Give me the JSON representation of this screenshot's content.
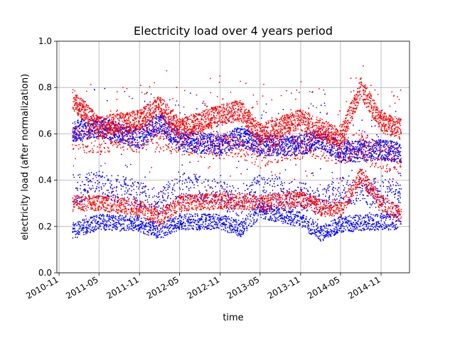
{
  "chart_data": {
    "type": "scatter",
    "title": "Electricity load over 4 years period",
    "xlabel": "time",
    "ylabel": "electricity load (after normalization)",
    "xlim": [
      "2010-10-22",
      "2015-03-10"
    ],
    "ylim": [
      0.0,
      1.0
    ],
    "grid": true,
    "x_ticks": [
      "2010-11",
      "2011-05",
      "2011-11",
      "2012-05",
      "2012-11",
      "2013-05",
      "2013-11",
      "2014-05",
      "2014-11"
    ],
    "y_ticks": [
      "0.0",
      "0.2",
      "0.4",
      "0.6",
      "0.8",
      "1.0"
    ],
    "series": [
      {
        "color": "#0000ff",
        "x_range": [
          "2011-01-01",
          "2015-01-31"
        ],
        "points_per_day": 4,
        "daily_profile": [
          {
            "date": "2011-01-01",
            "low": 0.18,
            "mid": 0.36,
            "high": 0.61
          },
          {
            "date": "2011-05-01",
            "low": 0.22,
            "mid": 0.38,
            "high": 0.63
          },
          {
            "date": "2011-11-01",
            "low": 0.21,
            "mid": 0.34,
            "high": 0.58
          },
          {
            "date": "2012-02-01",
            "low": 0.18,
            "mid": 0.3,
            "high": 0.65
          },
          {
            "date": "2012-05-01",
            "low": 0.22,
            "mid": 0.38,
            "high": 0.57
          },
          {
            "date": "2012-11-01",
            "low": 0.22,
            "mid": 0.34,
            "high": 0.55
          },
          {
            "date": "2013-02-01",
            "low": 0.19,
            "mid": 0.3,
            "high": 0.59
          },
          {
            "date": "2013-05-01",
            "low": 0.27,
            "mid": 0.38,
            "high": 0.55
          },
          {
            "date": "2013-11-01",
            "low": 0.23,
            "mid": 0.33,
            "high": 0.55
          },
          {
            "date": "2014-02-01",
            "low": 0.17,
            "mid": 0.3,
            "high": 0.58
          },
          {
            "date": "2014-05-01",
            "low": 0.21,
            "mid": 0.36,
            "high": 0.52
          },
          {
            "date": "2014-11-01",
            "low": 0.22,
            "mid": 0.35,
            "high": 0.53
          },
          {
            "date": "2015-01-31",
            "low": 0.22,
            "mid": 0.33,
            "high": 0.52
          }
        ]
      },
      {
        "color": "#ff0000",
        "x_range": [
          "2011-01-01",
          "2015-01-31"
        ],
        "points_per_day": 4,
        "daily_profile": [
          {
            "date": "2011-01-01",
            "low": 0.3,
            "mid": 0.57,
            "high": 0.75
          },
          {
            "date": "2011-05-01",
            "low": 0.3,
            "mid": 0.58,
            "high": 0.63
          },
          {
            "date": "2011-11-01",
            "low": 0.28,
            "mid": 0.58,
            "high": 0.66
          },
          {
            "date": "2012-02-01",
            "low": 0.24,
            "mid": 0.58,
            "high": 0.72
          },
          {
            "date": "2012-05-01",
            "low": 0.3,
            "mid": 0.57,
            "high": 0.62
          },
          {
            "date": "2012-11-01",
            "low": 0.31,
            "mid": 0.55,
            "high": 0.68
          },
          {
            "date": "2013-02-01",
            "low": 0.31,
            "mid": 0.55,
            "high": 0.7
          },
          {
            "date": "2013-05-01",
            "low": 0.3,
            "mid": 0.51,
            "high": 0.6
          },
          {
            "date": "2013-11-01",
            "low": 0.32,
            "mid": 0.55,
            "high": 0.66
          },
          {
            "date": "2014-02-01",
            "low": 0.28,
            "mid": 0.55,
            "high": 0.62
          },
          {
            "date": "2014-05-01",
            "low": 0.27,
            "mid": 0.52,
            "high": 0.58
          },
          {
            "date": "2014-08-01",
            "low": 0.42,
            "mid": 0.55,
            "high": 0.8
          },
          {
            "date": "2014-11-01",
            "low": 0.3,
            "mid": 0.5,
            "high": 0.65
          },
          {
            "date": "2015-01-31",
            "low": 0.25,
            "mid": 0.48,
            "high": 0.62
          }
        ]
      }
    ]
  }
}
